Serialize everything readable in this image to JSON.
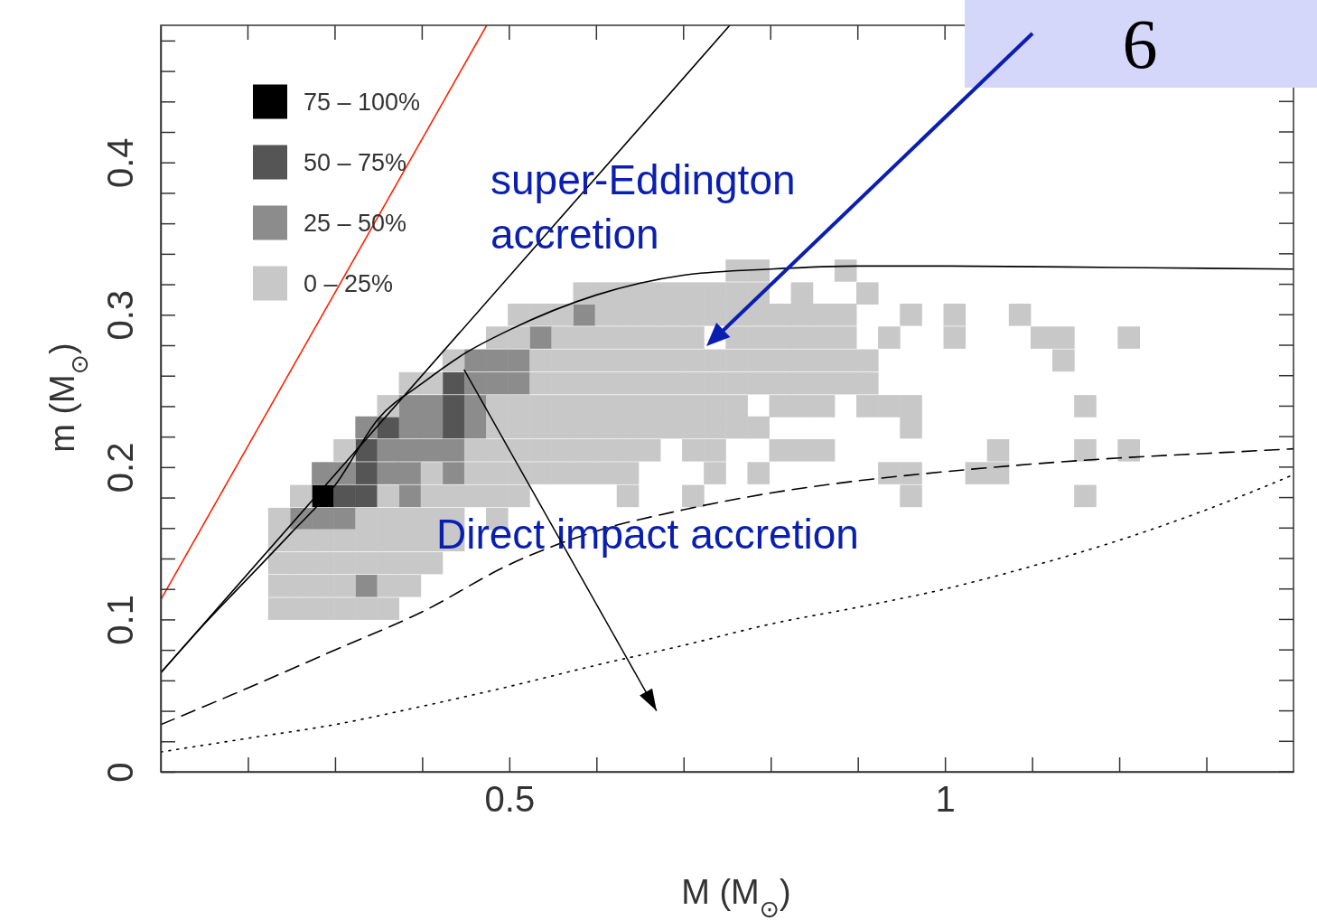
{
  "chart_data": {
    "type": "scatter",
    "xlabel": "M (M$_{⊙}$)",
    "ylabel": "m (M$_{⊙}$)",
    "xlim": [
      0.1,
      1.4
    ],
    "ylim": [
      0,
      0.49
    ],
    "xticks": [
      {
        "value": 0.2,
        "label": null
      },
      {
        "value": 0.3,
        "label": null
      },
      {
        "value": 0.4,
        "label": null
      },
      0.5,
      {
        "value": 0.6,
        "label": null
      },
      {
        "value": 0.7,
        "label": null
      },
      {
        "value": 0.8,
        "label": null
      },
      {
        "value": 0.9,
        "label": null
      },
      1,
      {
        "value": 1.1,
        "label": null
      },
      {
        "value": 1.2,
        "label": null
      },
      {
        "value": 1.3,
        "label": null
      }
    ],
    "yticks": [
      0,
      {
        "value": 0.02,
        "label": null
      },
      {
        "value": 0.04,
        "label": null
      },
      {
        "value": 0.06,
        "label": null
      },
      {
        "value": 0.08,
        "label": null
      },
      0.1,
      {
        "value": 0.12,
        "label": null
      },
      {
        "value": 0.14,
        "label": null
      },
      {
        "value": 0.16,
        "label": null
      },
      {
        "value": 0.18,
        "label": null
      },
      0.2,
      {
        "value": 0.22,
        "label": null
      },
      {
        "value": 0.24,
        "label": null
      },
      {
        "value": 0.26,
        "label": null
      },
      {
        "value": 0.28,
        "label": null
      },
      0.3,
      {
        "value": 0.32,
        "label": null
      },
      {
        "value": 0.34,
        "label": null
      },
      {
        "value": 0.36,
        "label": null
      },
      {
        "value": 0.38,
        "label": null
      },
      0.4,
      {
        "value": 0.42,
        "label": null
      },
      {
        "value": 0.44,
        "label": null
      },
      {
        "value": 0.46,
        "label": null
      },
      {
        "value": 0.48,
        "label": null
      }
    ],
    "legend": "top left",
    "series": [
      {
        "name": "75 – 100%",
        "color": "#000000",
        "marker": "square",
        "x": [
          0.286
        ],
        "values": [
          0.181
        ]
      },
      {
        "name": "50 – 75%",
        "color": "#555555",
        "marker": "square",
        "x": [
          0.311,
          0.336,
          0.336,
          0.336,
          0.361,
          0.436,
          0.436,
          0.436
        ],
        "values": [
          0.181,
          0.181,
          0.196,
          0.211,
          0.226,
          0.226,
          0.24,
          0.255
        ]
      },
      {
        "name": "25 – 50%",
        "color": "#8c8c8c",
        "marker": "square",
        "x": [
          0.336,
          0.261,
          0.286,
          0.311,
          0.386,
          0.286,
          0.311,
          0.361,
          0.386,
          0.436,
          0.361,
          0.386,
          0.411,
          0.436,
          0.336,
          0.386,
          0.411,
          0.461,
          0.386,
          0.411,
          0.461,
          0.461,
          0.486,
          0.511,
          0.461,
          0.486,
          0.511,
          0.536,
          0.586
        ],
        "values": [
          0.122,
          0.166,
          0.166,
          0.166,
          0.181,
          0.196,
          0.196,
          0.196,
          0.196,
          0.196,
          0.211,
          0.211,
          0.211,
          0.211,
          0.226,
          0.226,
          0.226,
          0.226,
          0.24,
          0.24,
          0.24,
          0.255,
          0.255,
          0.255,
          0.27,
          0.27,
          0.27,
          0.285,
          0.3
        ]
      },
      {
        "name": "0 – 25%",
        "color": "#c8c8c8",
        "marker": "square",
        "x": [
          0.236,
          0.261,
          0.286,
          0.311,
          0.336,
          0.361,
          0.236,
          0.261,
          0.286,
          0.311,
          0.361,
          0.386,
          0.236,
          0.261,
          0.286,
          0.311,
          0.336,
          0.361,
          0.386,
          0.411,
          0.236,
          0.261,
          0.286,
          0.311,
          0.336,
          0.361,
          0.386,
          0.411,
          0.436,
          0.236,
          0.336,
          0.361,
          0.386,
          0.411,
          0.436,
          0.486,
          0.261,
          0.361,
          0.411,
          0.436,
          0.461,
          0.486,
          0.511,
          0.636,
          0.711,
          0.961,
          1.161,
          0.411,
          0.461,
          0.486,
          0.511,
          0.536,
          0.561,
          0.586,
          0.611,
          0.636,
          0.736,
          0.786,
          0.936,
          0.961,
          1.036,
          1.061,
          0.311,
          0.461,
          0.486,
          0.511,
          0.536,
          0.561,
          0.586,
          0.611,
          0.636,
          0.661,
          0.711,
          0.736,
          0.811,
          0.836,
          0.861,
          1.061,
          1.161,
          1.211,
          0.486,
          0.511,
          0.536,
          0.561,
          0.586,
          0.611,
          0.636,
          0.661,
          0.686,
          0.711,
          0.736,
          0.761,
          0.786,
          0.961,
          0.361,
          0.486,
          0.511,
          0.536,
          0.561,
          0.586,
          0.611,
          0.636,
          0.661,
          0.686,
          0.711,
          0.736,
          0.761,
          0.811,
          0.836,
          0.861,
          0.911,
          0.936,
          0.961,
          1.161,
          0.386,
          0.411,
          0.536,
          0.561,
          0.586,
          0.611,
          0.636,
          0.661,
          0.686,
          0.711,
          0.736,
          0.761,
          0.786,
          0.811,
          0.836,
          0.861,
          0.886,
          0.911,
          0.436,
          0.536,
          0.561,
          0.586,
          0.611,
          0.636,
          0.661,
          0.686,
          0.711,
          0.736,
          0.761,
          0.786,
          0.811,
          0.836,
          0.861,
          0.886,
          0.911,
          1.136,
          0.486,
          0.511,
          0.561,
          0.586,
          0.611,
          0.636,
          0.661,
          0.686,
          0.711,
          0.761,
          0.786,
          0.811,
          0.836,
          0.861,
          0.886,
          0.936,
          1.011,
          1.111,
          1.136,
          1.211,
          0.511,
          0.536,
          0.561,
          0.611,
          0.636,
          0.661,
          0.686,
          0.711,
          0.736,
          0.761,
          0.786,
          0.811,
          0.836,
          0.861,
          0.886,
          0.961,
          1.011,
          1.086,
          0.586,
          0.611,
          0.636,
          0.661,
          0.686,
          0.711,
          0.736,
          0.761,
          0.786,
          0.836,
          0.911,
          0.761,
          0.786,
          0.886
        ],
        "values": [
          0.107,
          0.107,
          0.107,
          0.107,
          0.107,
          0.107,
          0.122,
          0.122,
          0.122,
          0.122,
          0.122,
          0.122,
          0.137,
          0.137,
          0.137,
          0.137,
          0.137,
          0.137,
          0.137,
          0.137,
          0.152,
          0.152,
          0.152,
          0.152,
          0.152,
          0.152,
          0.152,
          0.152,
          0.152,
          0.166,
          0.166,
          0.166,
          0.166,
          0.166,
          0.166,
          0.166,
          0.181,
          0.181,
          0.181,
          0.181,
          0.181,
          0.181,
          0.181,
          0.181,
          0.181,
          0.181,
          0.181,
          0.196,
          0.196,
          0.196,
          0.196,
          0.196,
          0.196,
          0.196,
          0.196,
          0.196,
          0.196,
          0.196,
          0.196,
          0.196,
          0.196,
          0.196,
          0.211,
          0.211,
          0.211,
          0.211,
          0.211,
          0.211,
          0.211,
          0.211,
          0.211,
          0.211,
          0.211,
          0.211,
          0.211,
          0.211,
          0.211,
          0.211,
          0.211,
          0.211,
          0.226,
          0.226,
          0.226,
          0.226,
          0.226,
          0.226,
          0.226,
          0.226,
          0.226,
          0.226,
          0.226,
          0.226,
          0.226,
          0.226,
          0.24,
          0.24,
          0.24,
          0.24,
          0.24,
          0.24,
          0.24,
          0.24,
          0.24,
          0.24,
          0.24,
          0.24,
          0.24,
          0.24,
          0.24,
          0.24,
          0.24,
          0.24,
          0.24,
          0.24,
          0.255,
          0.255,
          0.255,
          0.255,
          0.255,
          0.255,
          0.255,
          0.255,
          0.255,
          0.255,
          0.255,
          0.255,
          0.255,
          0.255,
          0.255,
          0.255,
          0.255,
          0.255,
          0.27,
          0.27,
          0.27,
          0.27,
          0.27,
          0.27,
          0.27,
          0.27,
          0.27,
          0.27,
          0.27,
          0.27,
          0.27,
          0.27,
          0.27,
          0.27,
          0.27,
          0.27,
          0.285,
          0.285,
          0.285,
          0.285,
          0.285,
          0.285,
          0.285,
          0.285,
          0.285,
          0.285,
          0.285,
          0.285,
          0.285,
          0.285,
          0.285,
          0.285,
          0.285,
          0.285,
          0.285,
          0.285,
          0.3,
          0.3,
          0.3,
          0.3,
          0.3,
          0.3,
          0.3,
          0.3,
          0.3,
          0.3,
          0.3,
          0.3,
          0.3,
          0.3,
          0.3,
          0.3,
          0.3,
          0.3,
          0.314,
          0.314,
          0.314,
          0.314,
          0.314,
          0.314,
          0.314,
          0.314,
          0.314,
          0.314,
          0.314,
          0.329,
          0.329,
          0.329
        ]
      },
      {
        "type": "line",
        "color": "#ff2200",
        "line_style": "solid",
        "x": [
          0.1,
          0.474
        ],
        "values": [
          0.113,
          0.49
        ]
      },
      {
        "type": "line",
        "color": "#000000",
        "line_style": "solid",
        "x": [
          0.1,
          0.753
        ],
        "values": [
          0.065,
          0.49
        ]
      },
      {
        "type": "line",
        "color": "#000000",
        "line_style": "solid",
        "x": [
          0.1,
          0.15,
          0.2,
          0.25,
          0.3,
          0.35,
          0.4,
          0.45,
          0.5,
          0.6,
          0.7,
          0.8,
          0.9,
          1.0,
          1.2,
          1.4
        ],
        "values": [
          0.065,
          0.097,
          0.127,
          0.157,
          0.188,
          0.232,
          0.255,
          0.275,
          0.29,
          0.313,
          0.326,
          0.33,
          0.332,
          0.332,
          0.331,
          0.33
        ]
      },
      {
        "type": "line",
        "color": "#000000",
        "line_style": "dashed",
        "x": [
          0.1,
          0.2,
          0.3,
          0.4,
          0.5,
          0.6,
          0.7,
          0.8,
          0.9,
          1.0,
          1.1,
          1.2,
          1.3,
          1.4
        ],
        "values": [
          0.031,
          0.055,
          0.08,
          0.105,
          0.136,
          0.158,
          0.172,
          0.183,
          0.191,
          0.197,
          0.202,
          0.206,
          0.209,
          0.212
        ]
      },
      {
        "type": "line",
        "color": "#000000",
        "line_style": "dotted",
        "x": [
          0.1,
          0.2,
          0.3,
          0.4,
          0.5,
          0.6,
          0.7,
          0.8,
          0.9,
          1.0,
          1.1,
          1.2,
          1.3,
          1.4
        ],
        "values": [
          0.013,
          0.022,
          0.031,
          0.043,
          0.056,
          0.07,
          0.083,
          0.097,
          0.108,
          0.12,
          0.135,
          0.152,
          0.172,
          0.195
        ]
      }
    ],
    "annotations": [
      "super-Eddington\naccretion",
      "Direct impact accretion",
      "6"
    ]
  }
}
